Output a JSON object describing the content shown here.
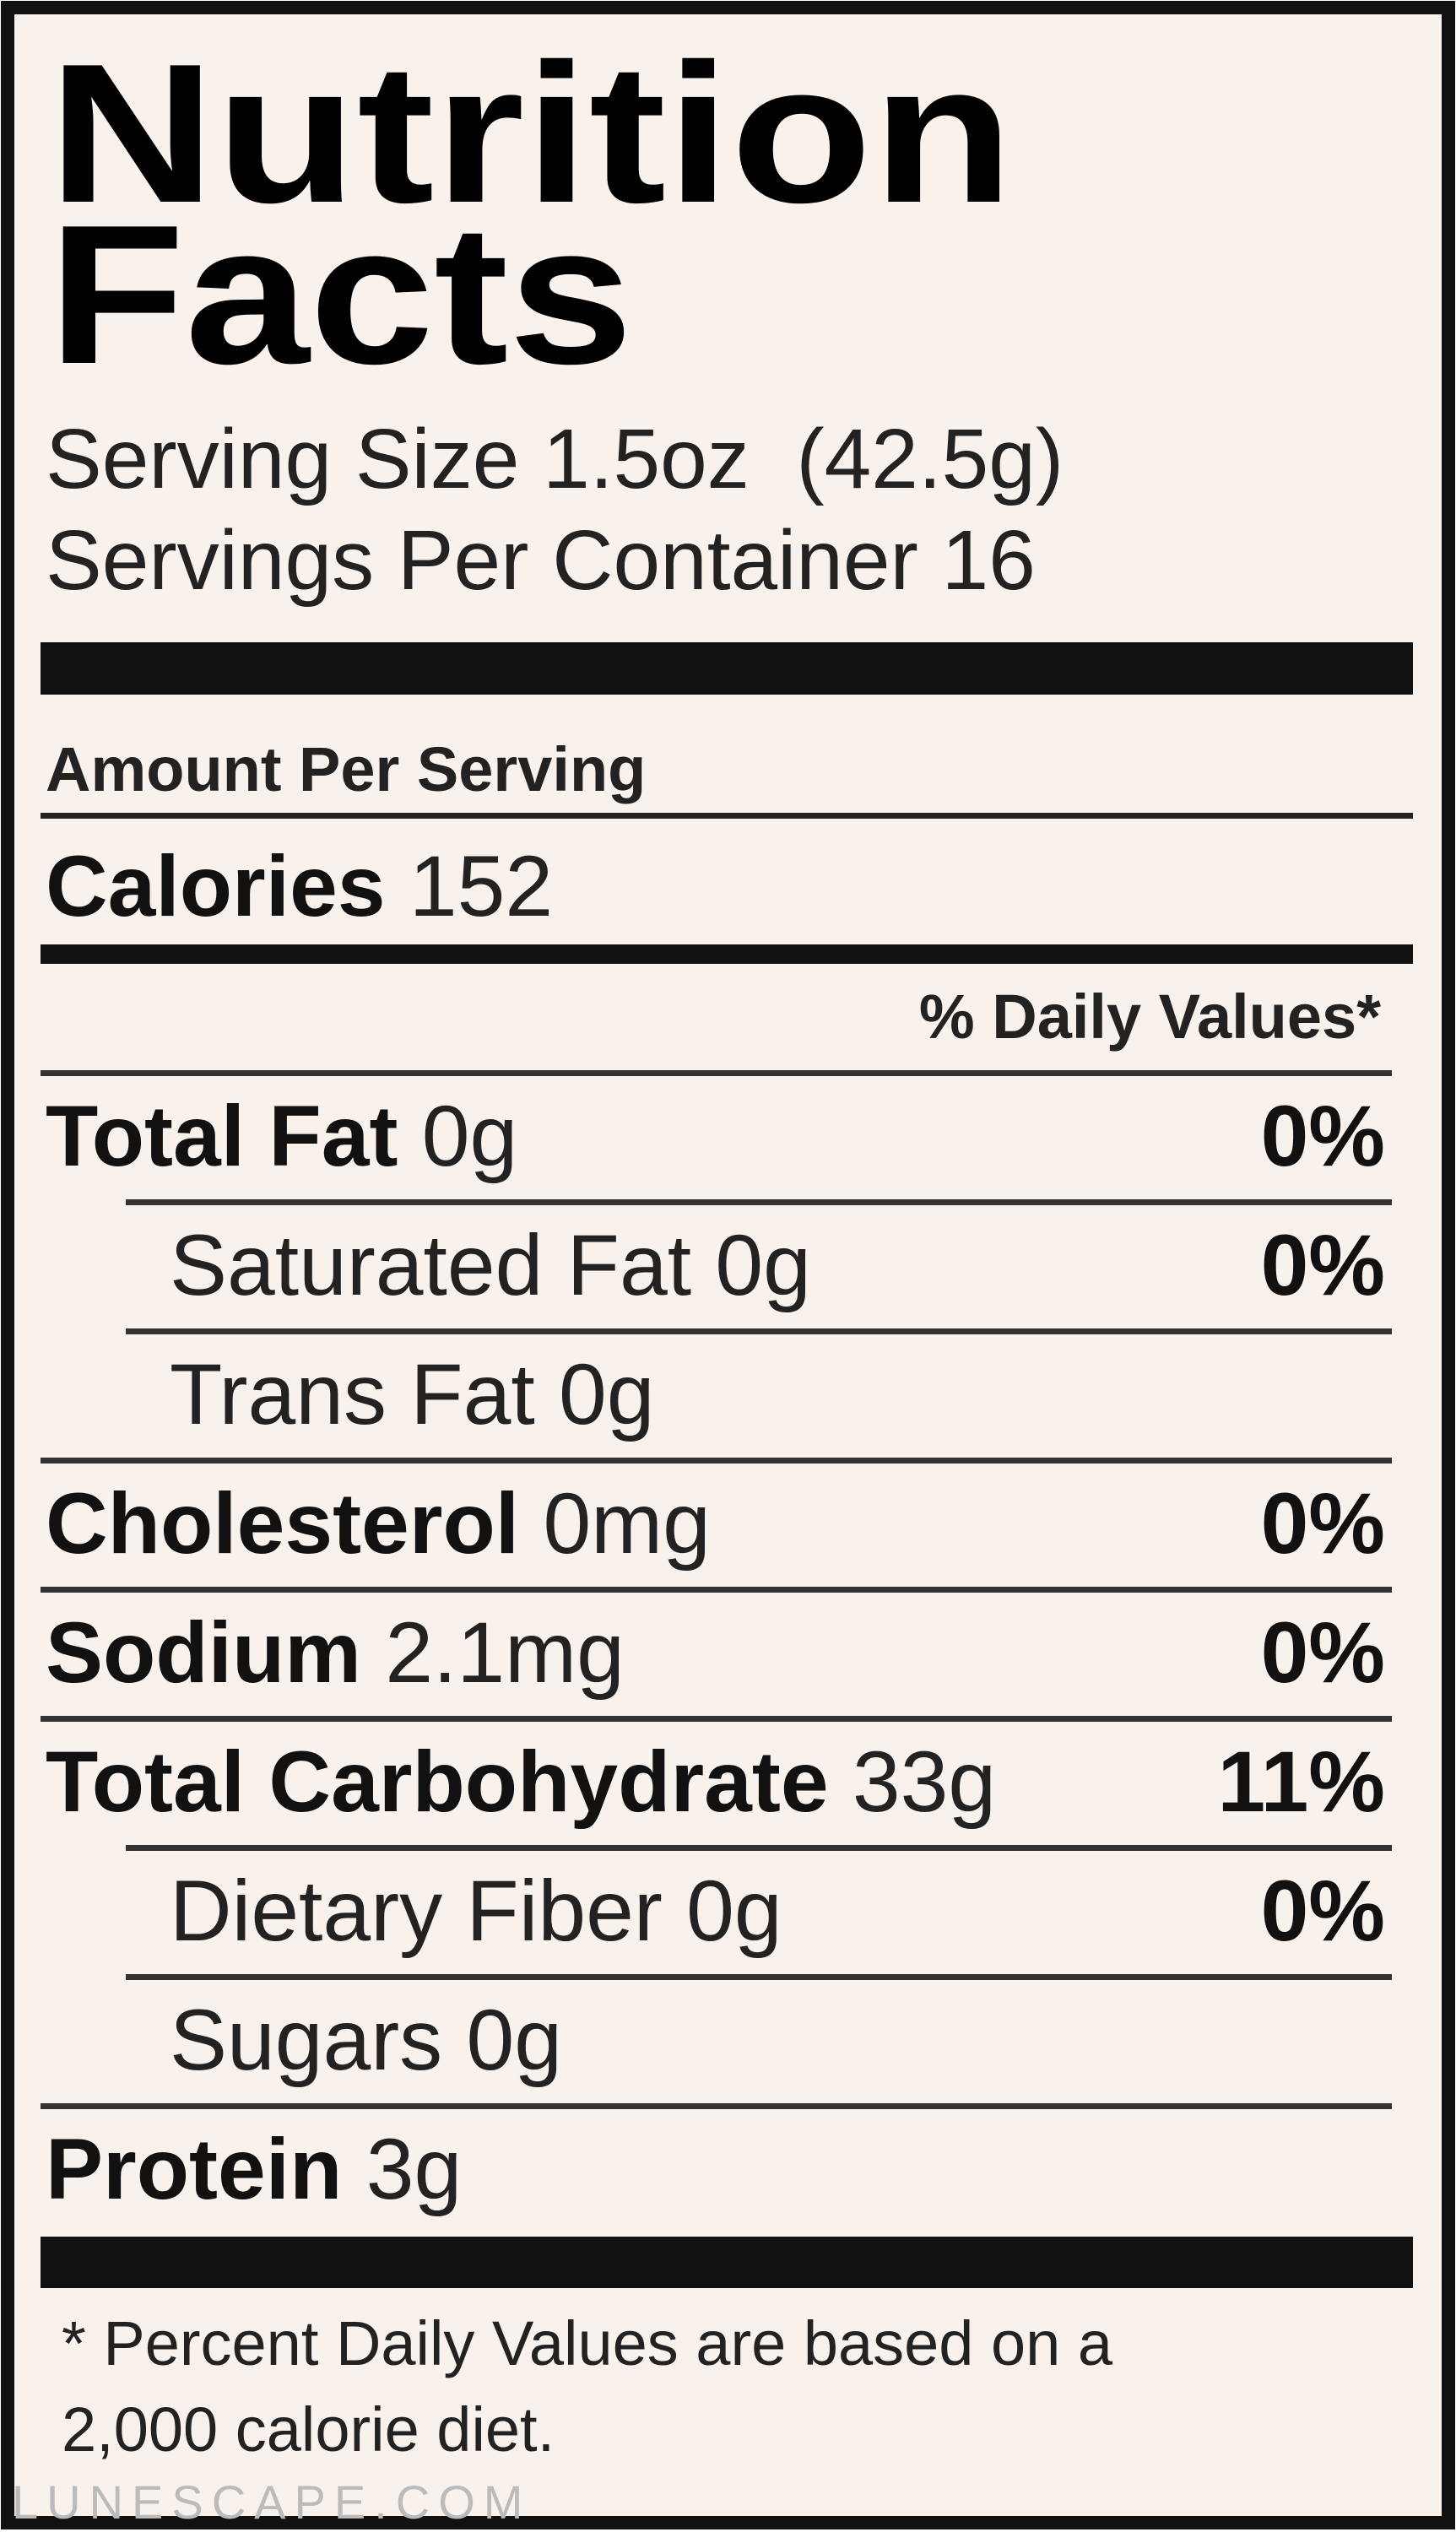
{
  "title_lines": [
    "Nutrition",
    "Facts"
  ],
  "serving_size": "Serving Size 1.5oz  (42.5g)",
  "servings_per_container": "Servings Per Container 16",
  "amount_per_serving": "Amount Per Serving",
  "calories": {
    "label": "Calories",
    "amount": "152"
  },
  "daily_values_header": "% Daily Values*",
  "nutrients": [
    {
      "label": "Total Fat",
      "amount": "0g",
      "dv": "0%",
      "indent": false
    },
    {
      "label": "Saturated Fat",
      "amount": "0g",
      "dv": "0%",
      "indent": true
    },
    {
      "label": "Trans Fat",
      "amount": "0g",
      "indent": true
    },
    {
      "label": "Cholesterol",
      "amount": "0mg",
      "dv": "0%",
      "indent": false
    },
    {
      "label": "Sodium",
      "amount": "2.1mg",
      "dv": "0%",
      "indent": false
    },
    {
      "label": "Total Carbohydrate",
      "amount": "33g",
      "dv": "11%",
      "indent": false
    },
    {
      "label": "Dietary Fiber",
      "amount": "0g",
      "dv": "0%",
      "indent": true
    },
    {
      "label": "Sugars",
      "amount": "0g",
      "indent": true
    },
    {
      "label": "Protein",
      "amount": "3g",
      "indent": false
    }
  ],
  "footnote": [
    "* Percent Daily Values are based on a",
    "2,000 calorie diet."
  ],
  "watermark": "LUNESCAPE.COM"
}
